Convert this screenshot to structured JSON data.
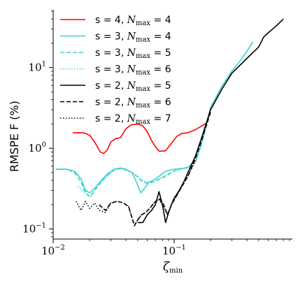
{
  "chart_data": {
    "type": "line",
    "xlabel": "ζmin",
    "xlabel_main": "ζ",
    "xlabel_sub": "min",
    "ylabel": "RMSPE F (%)",
    "xscale": "log",
    "yscale": "log",
    "xlim": [
      0.01,
      0.95
    ],
    "ylim": [
      0.075,
      52
    ],
    "x_ticks": [
      {
        "value": 0.01,
        "base": "10",
        "exp": "−2"
      },
      {
        "value": 0.1,
        "base": "10",
        "exp": "−1"
      }
    ],
    "y_ticks": [
      {
        "value": 0.1,
        "base": "10",
        "exp": "−1"
      },
      {
        "value": 1,
        "base": "10",
        "exp": "0"
      },
      {
        "value": 10,
        "base": "10",
        "exp": "1"
      }
    ],
    "legend_position": "upper-left",
    "series": [
      {
        "name": "s = 4, Nmax = 4",
        "legend_prefix": "s = 4, ",
        "legend_var": "N",
        "legend_sub": "max",
        "legend_suffix": " = 4",
        "color": "#ff0000",
        "dash": "solid",
        "x": [
          0.0145,
          0.016,
          0.018,
          0.02,
          0.022,
          0.0245,
          0.026,
          0.028,
          0.03,
          0.033,
          0.036,
          0.04,
          0.044,
          0.05,
          0.055,
          0.06,
          0.065,
          0.07,
          0.075,
          0.085,
          0.095,
          0.105,
          0.115,
          0.13,
          0.15,
          0.17,
          0.19
        ],
        "y": [
          1.55,
          1.56,
          1.55,
          1.45,
          1.2,
          0.9,
          0.86,
          0.95,
          1.2,
          1.32,
          1.35,
          1.75,
          1.95,
          2.0,
          1.9,
          1.6,
          1.25,
          1.05,
          0.92,
          0.93,
          1.15,
          1.4,
          1.52,
          1.56,
          1.7,
          1.9,
          2.1
        ]
      },
      {
        "name": "s = 3, Nmax = 4",
        "legend_prefix": "s = 3, ",
        "legend_var": "N",
        "legend_sub": "max",
        "legend_suffix": " = 4",
        "color": "#40d0d0",
        "dash": "solid",
        "x": [
          0.0105,
          0.013,
          0.015,
          0.017,
          0.0185,
          0.02,
          0.022,
          0.025,
          0.028,
          0.032,
          0.036,
          0.04,
          0.045,
          0.05,
          0.053,
          0.057,
          0.062,
          0.067,
          0.075,
          0.085,
          0.1,
          0.115,
          0.13,
          0.15,
          0.17,
          0.2,
          0.25,
          0.3,
          0.35,
          0.4,
          0.45
        ],
        "y": [
          0.55,
          0.55,
          0.52,
          0.42,
          0.3,
          0.28,
          0.32,
          0.4,
          0.48,
          0.55,
          0.57,
          0.55,
          0.5,
          0.35,
          0.28,
          0.32,
          0.38,
          0.4,
          0.45,
          0.52,
          0.55,
          0.56,
          0.58,
          0.7,
          1.2,
          3.2,
          6.0,
          9.0,
          12.0,
          16.0,
          21.0
        ]
      },
      {
        "name": "s = 3, Nmax = 5",
        "legend_prefix": "s = 3, ",
        "legend_var": "N",
        "legend_sub": "max",
        "legend_suffix": " = 5",
        "color": "#40d0d0",
        "dash": "dashed",
        "x": [
          0.0105,
          0.013,
          0.015,
          0.017,
          0.0185,
          0.02,
          0.022,
          0.025,
          0.028,
          0.032,
          0.036,
          0.04,
          0.045,
          0.05,
          0.055,
          0.06,
          0.067,
          0.075,
          0.085,
          0.1,
          0.115,
          0.13,
          0.15,
          0.17,
          0.2
        ],
        "y": [
          0.55,
          0.55,
          0.5,
          0.38,
          0.28,
          0.25,
          0.3,
          0.38,
          0.46,
          0.54,
          0.56,
          0.54,
          0.5,
          0.44,
          0.38,
          0.37,
          0.38,
          0.41,
          0.45,
          0.52,
          0.56,
          0.58,
          0.7,
          1.2,
          3.0
        ]
      },
      {
        "name": "s = 3, Nmax = 6",
        "legend_prefix": "s = 3, ",
        "legend_var": "N",
        "legend_sub": "max",
        "legend_suffix": " = 6",
        "color": "#40d0d0",
        "dash": "dotted",
        "x": [
          0.016,
          0.0175,
          0.019,
          0.0205,
          0.022,
          0.025,
          0.028,
          0.032,
          0.036,
          0.04,
          0.045,
          0.05,
          0.055,
          0.06,
          0.067,
          0.075,
          0.085,
          0.1,
          0.115,
          0.13,
          0.15,
          0.17
        ],
        "y": [
          0.34,
          0.3,
          0.27,
          0.25,
          0.3,
          0.38,
          0.46,
          0.54,
          0.56,
          0.54,
          0.5,
          0.45,
          0.4,
          0.38,
          0.4,
          0.42,
          0.46,
          0.52,
          0.55,
          0.57,
          0.66,
          1.1
        ]
      },
      {
        "name": "s = 2, Nmax = 5",
        "legend_prefix": "s = 2, ",
        "legend_var": "N",
        "legend_sub": "max",
        "legend_suffix": " = 5",
        "color": "#000000",
        "dash": "solid",
        "x": [
          0.05,
          0.055,
          0.06,
          0.065,
          0.07,
          0.075,
          0.08,
          0.085,
          0.09,
          0.095,
          0.1,
          0.11,
          0.12,
          0.13,
          0.15,
          0.17,
          0.2,
          0.25,
          0.3,
          0.4,
          0.5,
          0.55,
          0.6,
          0.7,
          0.8
        ],
        "y": [
          0.12,
          0.12,
          0.15,
          0.17,
          0.2,
          0.29,
          0.2,
          0.12,
          0.16,
          0.2,
          0.24,
          0.3,
          0.38,
          0.5,
          0.8,
          1.4,
          3.0,
          5.5,
          8.5,
          13.0,
          18.0,
          24.0,
          27.0,
          33.0,
          40.0
        ]
      },
      {
        "name": "s = 2, Nmax = 6",
        "legend_prefix": "s = 2, ",
        "legend_var": "N",
        "legend_sub": "max",
        "legend_suffix": " = 6",
        "color": "#000000",
        "dash": "dashed",
        "x": [
          0.024,
          0.027,
          0.03,
          0.034,
          0.038,
          0.042,
          0.047,
          0.05,
          0.054,
          0.058,
          0.063,
          0.068,
          0.075,
          0.082,
          0.088,
          0.095,
          0.105,
          0.115,
          0.13,
          0.15,
          0.17,
          0.2
        ],
        "y": [
          0.2,
          0.17,
          0.21,
          0.22,
          0.21,
          0.19,
          0.11,
          0.13,
          0.15,
          0.16,
          0.18,
          0.21,
          0.24,
          0.2,
          0.15,
          0.2,
          0.26,
          0.33,
          0.45,
          0.75,
          1.3,
          2.8
        ]
      },
      {
        "name": "s = 2, Nmax = 7",
        "legend_prefix": "s = 2, ",
        "legend_var": "N",
        "legend_sub": "max",
        "legend_suffix": " = 7",
        "color": "#000000",
        "dash": "dotted",
        "x": [
          0.0155,
          0.017,
          0.0185,
          0.02,
          0.022,
          0.024,
          0.027,
          0.03,
          0.034,
          0.038,
          0.042,
          0.047,
          0.05,
          0.054,
          0.058,
          0.063,
          0.068,
          0.075,
          0.082,
          0.088,
          0.095,
          0.105,
          0.115,
          0.13,
          0.15
        ],
        "y": [
          0.22,
          0.17,
          0.22,
          0.18,
          0.21,
          0.17,
          0.16,
          0.21,
          0.22,
          0.21,
          0.19,
          0.11,
          0.13,
          0.15,
          0.16,
          0.18,
          0.21,
          0.23,
          0.19,
          0.15,
          0.2,
          0.26,
          0.33,
          0.45,
          0.7
        ]
      }
    ]
  }
}
